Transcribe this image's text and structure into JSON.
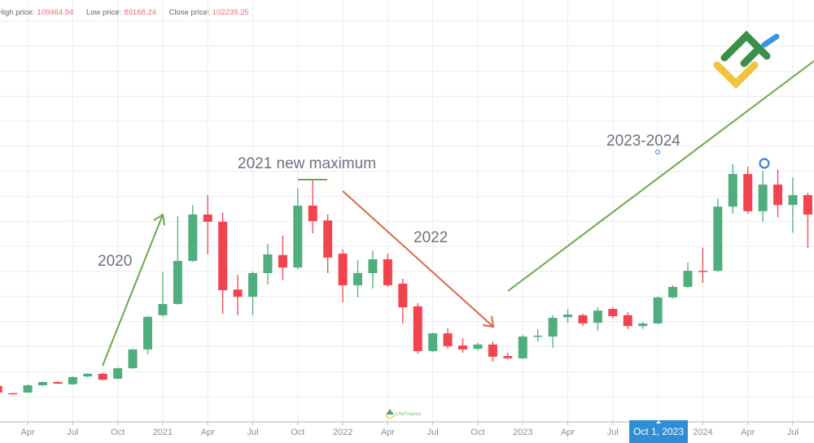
{
  "header": {
    "stats": [
      {
        "label": "High price:",
        "value": "109464.94"
      },
      {
        "label": "Low price:",
        "value": "89168.24"
      },
      {
        "label": "Close price:",
        "value": "102239.25"
      }
    ]
  },
  "colors": {
    "up": "#4fae7c",
    "down": "#f2444f",
    "grid": "#ececf0",
    "axis": "#b5b8bf",
    "highlight": "#2e8fd8",
    "trend_up": "#6aa84f",
    "trend_down": "#d9664a"
  },
  "annotations": {
    "a2020": "2020",
    "a2021": "2021 new maximum",
    "a2022": "2022",
    "a2023": "2023-2024"
  },
  "crosshair_label": "Oct 1, 2023",
  "logo_text": "LiteFinance",
  "chart_data": {
    "type": "candlestick",
    "interval": "monthly",
    "columns": [
      "month",
      "open",
      "high",
      "low",
      "close"
    ],
    "candles": [
      [
        "2020-02",
        6300,
        6800,
        3800,
        4300
      ],
      [
        "2020-03",
        4100,
        4200,
        3900,
        4000
      ],
      [
        "2020-04",
        4300,
        6700,
        4200,
        6500
      ],
      [
        "2020-05",
        6500,
        7700,
        6300,
        7500
      ],
      [
        "2020-06",
        7500,
        7800,
        6900,
        7000
      ],
      [
        "2020-07",
        6800,
        9200,
        6700,
        9000
      ],
      [
        "2020-08",
        9200,
        10200,
        8900,
        10000
      ],
      [
        "2020-09",
        10000,
        10300,
        8000,
        8200
      ],
      [
        "2020-10",
        8500,
        11900,
        8300,
        11700
      ],
      [
        "2020-11",
        11700,
        17600,
        11500,
        17400
      ],
      [
        "2020-12",
        17400,
        27600,
        15900,
        27300
      ],
      [
        "2021-01",
        27800,
        40800,
        27300,
        31200
      ],
      [
        "2021-02",
        31200,
        57900,
        31000,
        44300
      ],
      [
        "2021-03",
        44300,
        61300,
        44000,
        58400
      ],
      [
        "2021-04",
        58400,
        64300,
        46300,
        56200
      ],
      [
        "2021-05",
        56200,
        58900,
        28200,
        35400
      ],
      [
        "2021-06",
        35600,
        40100,
        27800,
        33400
      ],
      [
        "2021-07",
        33400,
        41100,
        27800,
        40600
      ],
      [
        "2021-08",
        40600,
        49500,
        37100,
        46300
      ],
      [
        "2021-09",
        46100,
        52000,
        38400,
        42300
      ],
      [
        "2021-10",
        42300,
        66500,
        41800,
        61100
      ],
      [
        "2021-11",
        61100,
        69000,
        52700,
        56400
      ],
      [
        "2021-12",
        56600,
        58400,
        40600,
        45300
      ],
      [
        "2022-01",
        46500,
        47800,
        31700,
        36900
      ],
      [
        "2022-02",
        36900,
        44500,
        33200,
        40600
      ],
      [
        "2022-03",
        40600,
        47500,
        35900,
        44800
      ],
      [
        "2022-04",
        44800,
        46500,
        36400,
        36900
      ],
      [
        "2022-05",
        37400,
        38900,
        25300,
        30200
      ],
      [
        "2022-06",
        30500,
        31500,
        16100,
        16900
      ],
      [
        "2022-07",
        16900,
        22500,
        16700,
        22300
      ],
      [
        "2022-08",
        22300,
        23800,
        17600,
        18400
      ],
      [
        "2022-09",
        18600,
        20800,
        16400,
        17400
      ],
      [
        "2022-10",
        17600,
        19400,
        17100,
        18900
      ],
      [
        "2022-11",
        18900,
        19800,
        13700,
        15200
      ],
      [
        "2022-12",
        15400,
        16400,
        14400,
        14700
      ],
      [
        "2023-01",
        14700,
        21800,
        14500,
        21300
      ],
      [
        "2023-02",
        21300,
        23600,
        19800,
        21600
      ],
      [
        "2023-03",
        21300,
        27800,
        17900,
        27000
      ],
      [
        "2023-04",
        27200,
        29700,
        25500,
        28000
      ],
      [
        "2023-05",
        27800,
        28300,
        24500,
        25300
      ],
      [
        "2023-06",
        25500,
        30200,
        23100,
        29200
      ],
      [
        "2023-07",
        29700,
        30200,
        26800,
        27500
      ],
      [
        "2023-08",
        27800,
        28700,
        23600,
        24500
      ],
      [
        "2023-09",
        24500,
        25800,
        23600,
        25300
      ],
      [
        "2023-10",
        25300,
        33500,
        25000,
        33200
      ],
      [
        "2023-11",
        33200,
        36900,
        32900,
        36400
      ],
      [
        "2023-12",
        36400,
        43800,
        36200,
        41300
      ],
      [
        "2024-01",
        41300,
        48300,
        37600,
        41100
      ],
      [
        "2024-02",
        41300,
        63300,
        41000,
        60800
      ],
      [
        "2024-03",
        60800,
        73700,
        58600,
        70700
      ],
      [
        "2024-04",
        70700,
        73000,
        58600,
        59400
      ],
      [
        "2024-05",
        59400,
        71700,
        56200,
        67500
      ],
      [
        "2024-06",
        67500,
        72000,
        57600,
        61300
      ],
      [
        "2024-07",
        61300,
        69700,
        52900,
        64300
      ],
      [
        "2024-08",
        64300,
        65000,
        48300,
        58400
      ]
    ],
    "x_ticks": [
      {
        "month": "2020-04",
        "label": "Apr"
      },
      {
        "month": "2020-07",
        "label": "Jul"
      },
      {
        "month": "2020-10",
        "label": "Oct"
      },
      {
        "month": "2021-01",
        "label": "2021"
      },
      {
        "month": "2021-04",
        "label": "Apr"
      },
      {
        "month": "2021-07",
        "label": "Jul"
      },
      {
        "month": "2021-10",
        "label": "Oct"
      },
      {
        "month": "2022-01",
        "label": "2022"
      },
      {
        "month": "2022-04",
        "label": "Apr"
      },
      {
        "month": "2022-07",
        "label": "Jul"
      },
      {
        "month": "2022-10",
        "label": "Oct"
      },
      {
        "month": "2023-01",
        "label": "2023"
      },
      {
        "month": "2023-04",
        "label": "Apr"
      },
      {
        "month": "2023-07",
        "label": "Jul"
      },
      {
        "month": "2023-10",
        "label": ""
      },
      {
        "month": "2024-01",
        "label": "2024"
      },
      {
        "month": "2024-04",
        "label": "Apr"
      },
      {
        "month": "2024-07",
        "label": "Jul"
      }
    ],
    "y_axis_visible": false,
    "grid": true,
    "title": "",
    "xlabel": "",
    "ylabel": ""
  }
}
